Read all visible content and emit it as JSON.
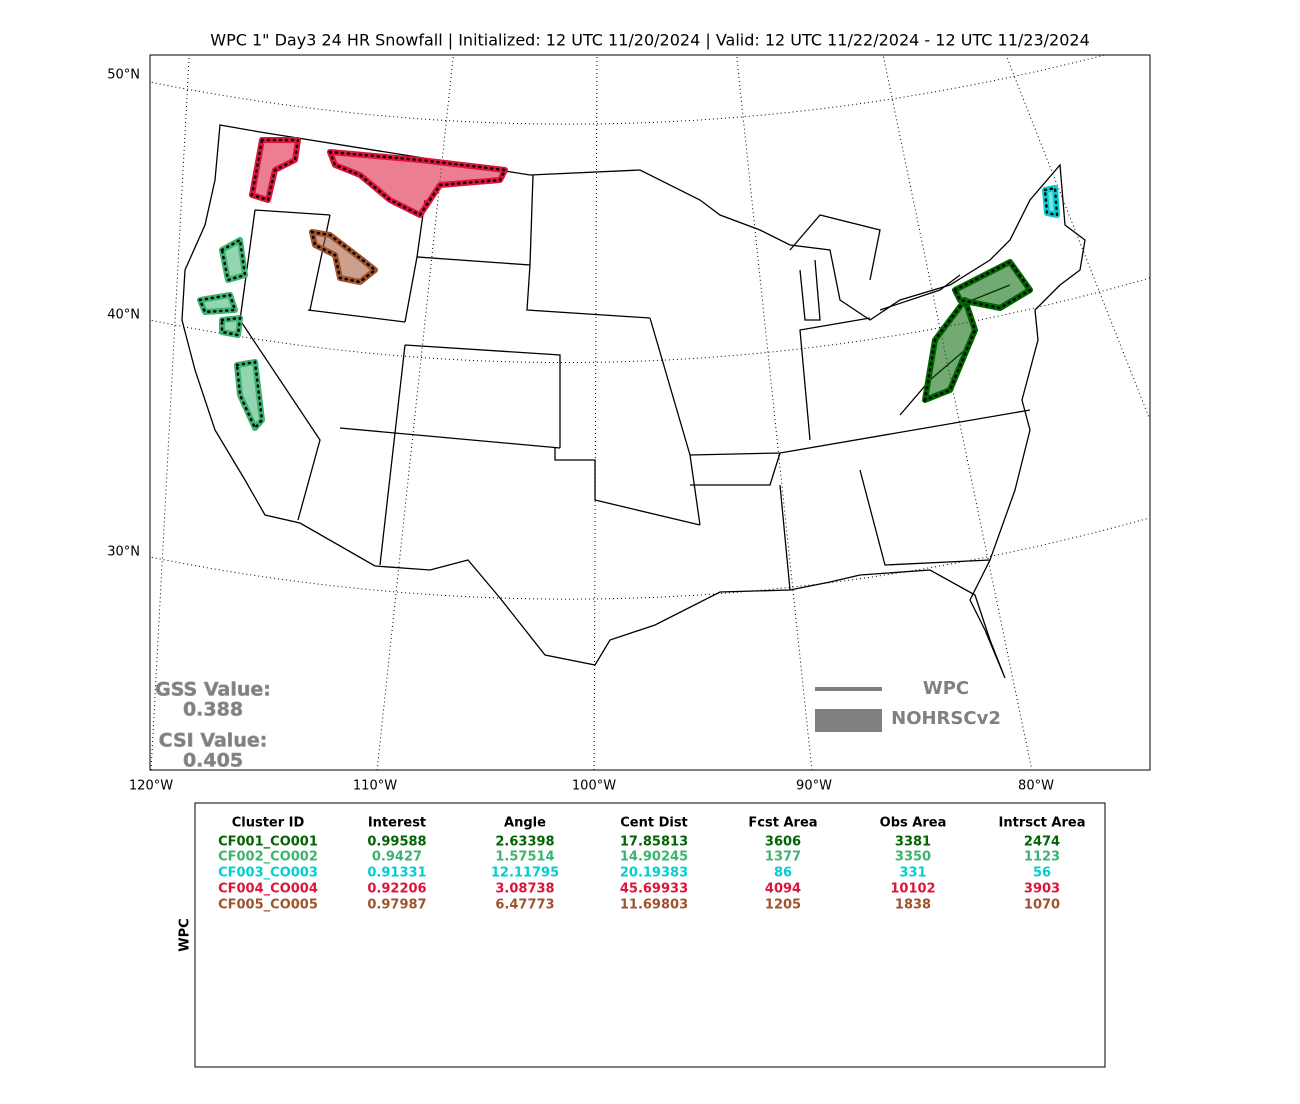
{
  "title": "WPC 1\" Day3 24 HR Snowfall | Initialized: 12 UTC 11/20/2024 | Valid: 12 UTC 11/22/2024 - 12 UTC 11/23/2024",
  "map": {
    "lat_labels": [
      "50°N",
      "40°N",
      "30°N"
    ],
    "lon_labels": [
      "120°W",
      "110°W",
      "100°W",
      "90°W",
      "80°W"
    ],
    "stats": {
      "gss_label": "GSS Value:",
      "gss": "0.388",
      "csi_label": "CSI Value:",
      "csi": "0.405"
    },
    "legend": [
      {
        "name": "WPC",
        "color": "#808080"
      },
      {
        "name": "NOHRSCv2",
        "color": "#808080"
      }
    ]
  },
  "table": {
    "ylabel": "WPC",
    "headers": [
      "Cluster ID",
      "Interest",
      "Angle",
      "Cent Dist",
      "Fcst Area",
      "Obs Area",
      "Intrsct Area"
    ],
    "rows": [
      {
        "color": "#006400",
        "cells": [
          "CF001_CO001",
          "0.99588",
          "2.63398",
          "17.85813",
          "3606",
          "3381",
          "2474"
        ]
      },
      {
        "color": "#3cb371",
        "cells": [
          "CF002_CO002",
          "0.9427",
          "1.57514",
          "14.90245",
          "1377",
          "3350",
          "1123"
        ]
      },
      {
        "color": "#00ced1",
        "cells": [
          "CF003_CO003",
          "0.91331",
          "12.11795",
          "20.19383",
          "86",
          "331",
          "56"
        ]
      },
      {
        "color": "#dc143c",
        "cells": [
          "CF004_CO004",
          "0.92206",
          "3.08738",
          "45.69933",
          "4094",
          "10102",
          "3903"
        ]
      },
      {
        "color": "#a0522d",
        "cells": [
          "CF005_CO005",
          "0.97987",
          "6.47773",
          "11.69803",
          "1205",
          "1838",
          "1070"
        ]
      }
    ]
  }
}
